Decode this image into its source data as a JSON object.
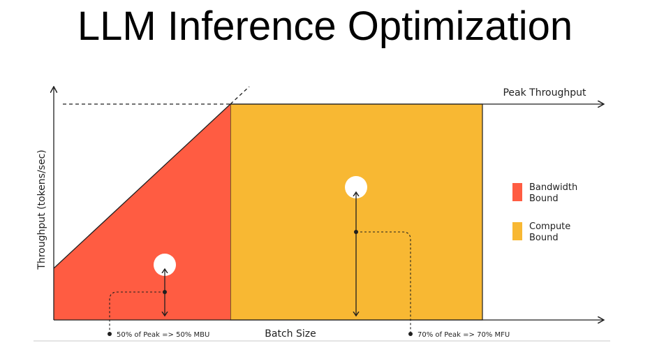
{
  "title": "LLM Inference Optimization",
  "diagram": {
    "y_axis_label": "Throughput (tokens/sec)",
    "x_axis_label": "Batch Size",
    "peak_label": "Peak Throughput",
    "legend": [
      {
        "label_line1": "Bandwidth",
        "label_line2": "Bound",
        "color": "#ff5c42"
      },
      {
        "label_line1": "Compute",
        "label_line2": "Bound",
        "color": "#f8b833"
      }
    ],
    "annotations": {
      "mbu": "50% of Peak => 50% MBU",
      "mfu": "70% of Peak => 70% MFU"
    },
    "colors": {
      "bandwidth": "#ff5c42",
      "compute": "#f8b833",
      "axis": "#1f1f1f",
      "circle": "#ffffff"
    }
  }
}
